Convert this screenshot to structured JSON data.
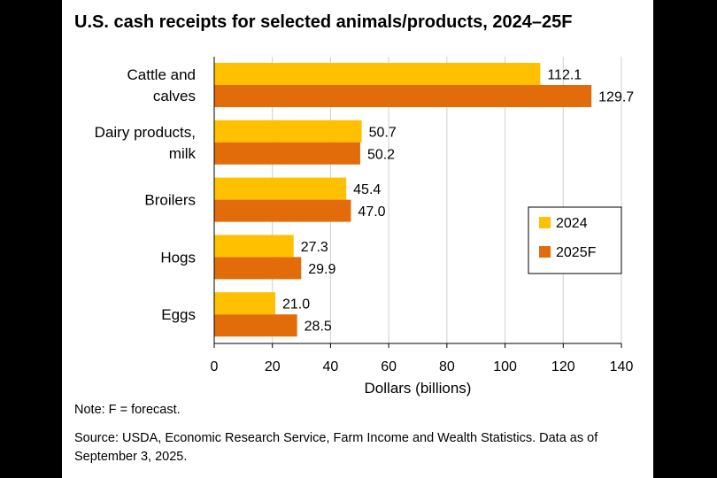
{
  "chart_data": {
    "type": "bar",
    "orientation": "horizontal",
    "title": "U.S. cash receipts for selected animals/products, 2024–25F",
    "xlabel": "Dollars (billions)",
    "ylabel": "",
    "xlim": [
      0,
      140
    ],
    "ticks": [
      0,
      20,
      40,
      60,
      80,
      100,
      120,
      140
    ],
    "grid": true,
    "legend_position": "right",
    "categories": [
      [
        "Cattle and",
        "calves"
      ],
      [
        "Dairy products,",
        "milk"
      ],
      [
        "Broilers"
      ],
      [
        "Hogs"
      ],
      [
        "Eggs"
      ]
    ],
    "series": [
      {
        "name": "2024",
        "color": "#ffc000",
        "values": [
          112.1,
          50.7,
          45.4,
          27.3,
          21.0
        ],
        "labels": [
          "112.1",
          "50.7",
          "45.4",
          "27.3",
          "21.0"
        ]
      },
      {
        "name": "2025F",
        "color": "#e36c0a",
        "values": [
          129.7,
          50.2,
          47.0,
          29.9,
          28.5
        ],
        "labels": [
          "129.7",
          "50.2",
          "47.0",
          "29.9",
          "28.5"
        ]
      }
    ]
  },
  "note": "Note: F = forecast.",
  "source": "Source: USDA, Economic Research Service, Farm Income and Wealth Statistics. Data as of September 3, 2025."
}
